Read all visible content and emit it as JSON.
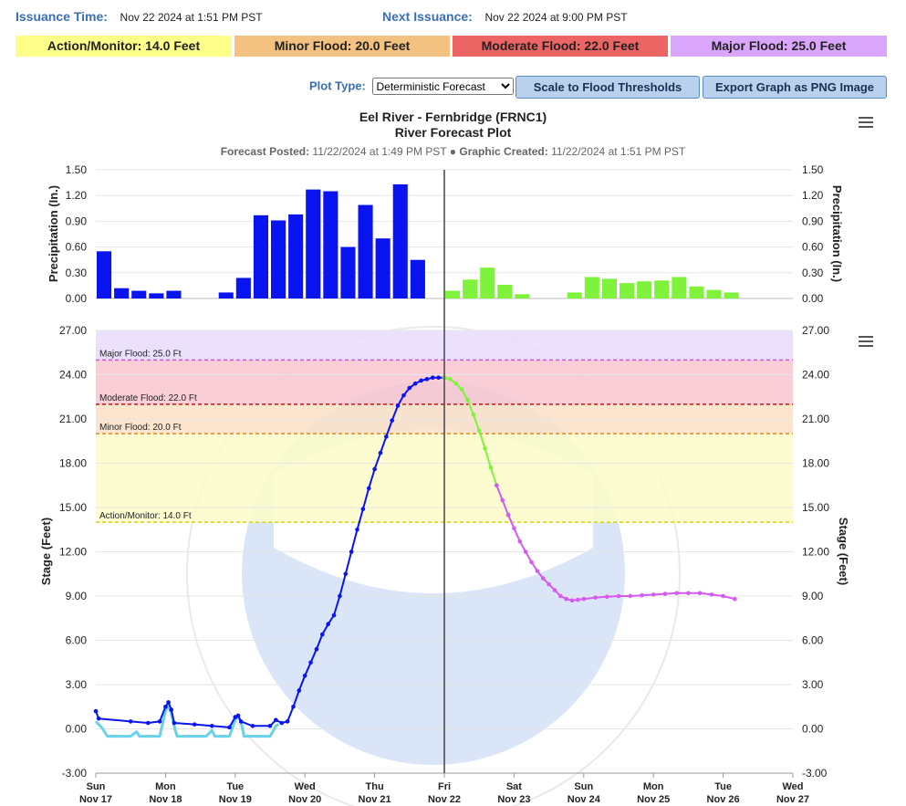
{
  "header": {
    "issuance_label": "Issuance Time:",
    "issuance_value": "Nov 22 2024 at 1:51 PM PST",
    "next_label": "Next Issuance:",
    "next_value": "Nov 22 2024 at 9:00 PM PST"
  },
  "thresholds": [
    {
      "label": "Action/Monitor: 14.0 Feet",
      "color": "#fdfd8a"
    },
    {
      "label": "Minor Flood: 20.0 Feet",
      "color": "#f3c180"
    },
    {
      "label": "Moderate Flood: 22.0 Feet",
      "color": "#ec6464"
    },
    {
      "label": "Major Flood: 25.0 Feet",
      "color": "#d9a6fb"
    }
  ],
  "controls": {
    "plot_type_label": "Plot Type:",
    "plot_type_value": "Deterministic Forecast",
    "scale_button": "Scale to Flood Thresholds",
    "export_button": "Export Graph as PNG Image"
  },
  "chart": {
    "title": "Eel River - Fernbridge (FRNC1)",
    "subtitle": "River Forecast Plot",
    "posted_label": "Forecast Posted:",
    "posted_value": "11/22/2024 at 1:49 PM PST",
    "bullet": "●",
    "created_label": "Graphic Created:",
    "created_value": "11/22/2024 at 1:51 PM PST"
  },
  "icons": [
    "menu-icon"
  ],
  "chart_data": [
    {
      "type": "bar",
      "ylabel": "Precipitation (In.)",
      "ylim": [
        0,
        1.5
      ],
      "yticks": [
        "0.00",
        "0.30",
        "0.60",
        "0.90",
        "1.20",
        "1.50"
      ],
      "x_start": "Nov 17 00:00",
      "bar_width_hours": 6,
      "series": [
        {
          "name": "observed",
          "color": "#0a14f0",
          "x": [
            0,
            6,
            12,
            18,
            24,
            42,
            48,
            54,
            60,
            66,
            72,
            78,
            84,
            90,
            96,
            102,
            108,
            114
          ],
          "values": [
            0.55,
            0.12,
            0.09,
            0.06,
            0.09,
            0.07,
            0.24,
            0.97,
            0.91,
            0.98,
            1.27,
            1.25,
            0.6,
            1.09,
            0.7,
            1.33,
            0.45,
            0
          ]
        },
        {
          "name": "forecast",
          "color": "#7ff33c",
          "x": [
            120,
            126,
            132,
            138,
            144,
            162,
            168,
            174,
            180,
            186,
            192,
            198,
            204,
            210,
            216
          ],
          "values": [
            0.09,
            0.22,
            0.36,
            0.16,
            0.05,
            0.07,
            0.25,
            0.23,
            0.18,
            0.2,
            0.21,
            0.25,
            0.14,
            0.1,
            0.07
          ]
        }
      ]
    },
    {
      "type": "line",
      "ylabel": "Stage (Feet)",
      "ylim": [
        -3,
        27
      ],
      "yticks": [
        "-3.00",
        "0.00",
        "3.00",
        "6.00",
        "9.00",
        "12.00",
        "15.00",
        "18.00",
        "21.00",
        "24.00",
        "27.00"
      ],
      "xticks": [
        {
          "day": "Sun",
          "date": "Nov 17"
        },
        {
          "day": "Mon",
          "date": "Nov 18"
        },
        {
          "day": "Tue",
          "date": "Nov 19"
        },
        {
          "day": "Wed",
          "date": "Nov 20"
        },
        {
          "day": "Thu",
          "date": "Nov 21"
        },
        {
          "day": "Fri",
          "date": "Nov 22"
        },
        {
          "day": "Sat",
          "date": "Nov 23"
        },
        {
          "day": "Sun",
          "date": "Nov 24"
        },
        {
          "day": "Mon",
          "date": "Nov 25"
        },
        {
          "day": "Tue",
          "date": "Nov 26"
        },
        {
          "day": "Wed",
          "date": "Nov 27"
        }
      ],
      "now_hours": 120,
      "flood_lines": [
        {
          "label": "Major Flood: 25.0 Ft",
          "value": 25,
          "color": "#c857e0"
        },
        {
          "label": "Moderate Flood: 22.0 Ft",
          "value": 22,
          "color": "#d01010"
        },
        {
          "label": "Minor Flood: 20.0 Ft",
          "value": 20,
          "color": "#d88a1c"
        },
        {
          "label": "Action/Monitor: 14.0 Ft",
          "value": 14,
          "color": "#d4d40a"
        }
      ],
      "bands": [
        {
          "from": 25,
          "to": 27,
          "color": "#e9dcfb"
        },
        {
          "from": 22,
          "to": 25,
          "color": "#f8c6cf"
        },
        {
          "from": 20,
          "to": 22,
          "color": "#fbe0c7"
        },
        {
          "from": 14,
          "to": 20,
          "color": "#fcfbc8"
        }
      ],
      "series": [
        {
          "name": "observed-alt",
          "color": "#67d2e8",
          "points": [
            [
              0,
              0.5
            ],
            [
              2,
              0.1
            ],
            [
              4,
              -0.5
            ],
            [
              12,
              -0.5
            ],
            [
              14,
              -0.2
            ],
            [
              15,
              -0.5
            ],
            [
              22,
              -0.5
            ],
            [
              24,
              1.2
            ],
            [
              25,
              1.6
            ],
            [
              26,
              1.0
            ],
            [
              27,
              0.2
            ],
            [
              28,
              -0.5
            ],
            [
              38,
              -0.5
            ],
            [
              40,
              -0.1
            ],
            [
              41,
              -0.5
            ],
            [
              46,
              -0.5
            ],
            [
              48,
              0.6
            ],
            [
              49,
              0.8
            ],
            [
              50,
              0.5
            ],
            [
              51,
              -0.5
            ],
            [
              60,
              -0.5
            ],
            [
              62,
              0.2
            ],
            [
              63,
              0.3
            ]
          ]
        },
        {
          "name": "observed",
          "color": "#0a14f0",
          "points": [
            [
              0,
              1.2
            ],
            [
              1,
              0.7
            ],
            [
              12,
              0.5
            ],
            [
              18,
              0.4
            ],
            [
              22,
              0.5
            ],
            [
              24,
              1.5
            ],
            [
              25,
              1.8
            ],
            [
              26,
              1.3
            ],
            [
              27,
              0.4
            ],
            [
              34,
              0.3
            ],
            [
              40,
              0.2
            ],
            [
              46,
              0.1
            ],
            [
              48,
              0.8
            ],
            [
              49,
              0.9
            ],
            [
              50,
              0.5
            ],
            [
              54,
              0.2
            ],
            [
              60,
              0.2
            ],
            [
              62,
              0.6
            ],
            [
              64,
              0.4
            ],
            [
              66,
              0.5
            ],
            [
              68,
              1.5
            ],
            [
              70,
              2.6
            ],
            [
              72,
              3.6
            ],
            [
              74,
              4.5
            ],
            [
              76,
              5.4
            ],
            [
              78,
              6.4
            ],
            [
              80,
              7.1
            ],
            [
              82,
              7.7
            ],
            [
              84,
              9.0
            ],
            [
              86,
              10.5
            ],
            [
              88,
              12.0
            ],
            [
              90,
              13.5
            ],
            [
              92,
              14.9
            ],
            [
              94,
              16.3
            ],
            [
              96,
              17.6
            ],
            [
              98,
              18.7
            ],
            [
              100,
              19.8
            ],
            [
              102,
              20.9
            ],
            [
              104,
              21.9
            ],
            [
              106,
              22.6
            ],
            [
              108,
              23.1
            ],
            [
              110,
              23.4
            ],
            [
              112,
              23.6
            ],
            [
              114,
              23.7
            ],
            [
              116,
              23.8
            ],
            [
              118,
              23.8
            ],
            [
              120,
              23.8
            ]
          ]
        },
        {
          "name": "forecast-early",
          "color": "#7ff33c",
          "points": [
            [
              120,
              23.8
            ],
            [
              122,
              23.7
            ],
            [
              124,
              23.4
            ],
            [
              126,
              23.0
            ],
            [
              128,
              22.3
            ],
            [
              130,
              21.3
            ],
            [
              132,
              20.2
            ],
            [
              134,
              19.0
            ],
            [
              136,
              17.7
            ],
            [
              138,
              16.5
            ]
          ]
        },
        {
          "name": "forecast-late",
          "color": "#d45af0",
          "points": [
            [
              138,
              16.5
            ],
            [
              140,
              15.5
            ],
            [
              142,
              14.5
            ],
            [
              144,
              13.6
            ],
            [
              146,
              12.7
            ],
            [
              148,
              12.0
            ],
            [
              150,
              11.3
            ],
            [
              152,
              10.7
            ],
            [
              154,
              10.2
            ],
            [
              156,
              9.8
            ],
            [
              158,
              9.4
            ],
            [
              160,
              9.0
            ],
            [
              162,
              8.8
            ],
            [
              164,
              8.7
            ],
            [
              166,
              8.75
            ],
            [
              168,
              8.8
            ],
            [
              172,
              8.9
            ],
            [
              176,
              8.95
            ],
            [
              180,
              9.0
            ],
            [
              184,
              9.0
            ],
            [
              188,
              9.05
            ],
            [
              192,
              9.1
            ],
            [
              196,
              9.15
            ],
            [
              200,
              9.2
            ],
            [
              204,
              9.2
            ],
            [
              208,
              9.2
            ],
            [
              212,
              9.1
            ],
            [
              216,
              9.0
            ],
            [
              220,
              8.8
            ]
          ]
        }
      ]
    }
  ]
}
